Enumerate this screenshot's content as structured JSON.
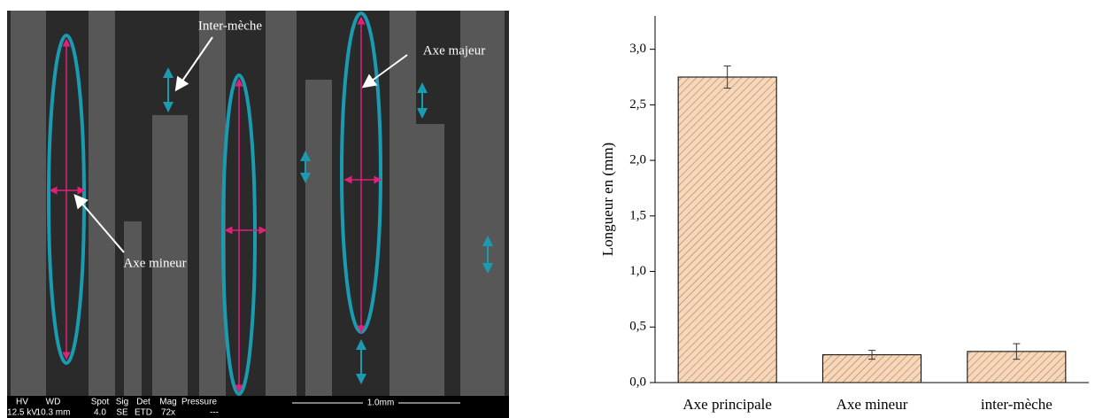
{
  "image": {
    "labels": [
      "Inter-mèche",
      "Axe majeur",
      "Axe mineur"
    ],
    "footer_headers": [
      "HV",
      "WD",
      "Spot",
      "Sig",
      "Det",
      "Mag",
      "Pressure"
    ],
    "footer_values": [
      "12.5 kV",
      "10.3 mm",
      "4.0",
      "SE",
      "ETD",
      "72x",
      "---"
    ],
    "scale_bar": "1.0mm"
  },
  "chart_data": {
    "type": "bar",
    "y_label": "Longueur en (mm)",
    "categories": [
      "Axe principale",
      "Axe mineur",
      "inter-mèche"
    ],
    "values": [
      2.75,
      0.25,
      0.28
    ],
    "errors": [
      0.1,
      0.04,
      0.07
    ],
    "color": "#f7d7b9",
    "hatch_color": "#b07a58",
    "ylim": [
      0,
      3.3
    ],
    "yticks": [
      {
        "value": 0,
        "label": "0,0"
      },
      {
        "value": 0.5,
        "label": "0,5"
      },
      {
        "value": 1,
        "label": "1,0"
      },
      {
        "value": 1.5,
        "label": "1,5"
      },
      {
        "value": 2,
        "label": "2,0"
      },
      {
        "value": 2.5,
        "label": "2,5"
      },
      {
        "value": 3,
        "label": "3,0"
      }
    ]
  }
}
